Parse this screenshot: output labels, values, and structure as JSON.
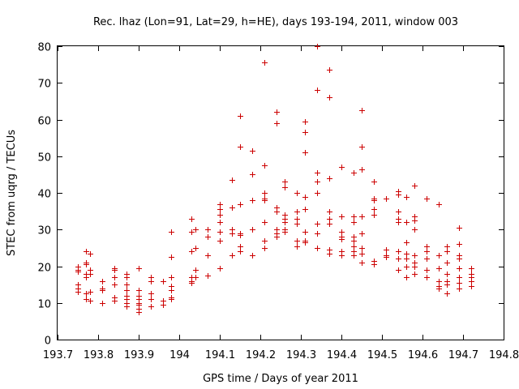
{
  "chart_data": {
    "type": "scatter",
    "title": "Rec. lhaz (Lon=91, Lat=29, h=HE), days 193-194, 2011, window 003",
    "xlabel": "GPS time / Days of year 2011",
    "ylabel": "STEC from uqrg / TECUs",
    "xlim": [
      193.7,
      194.8
    ],
    "ylim": [
      0,
      80
    ],
    "xticks": [
      193.7,
      193.8,
      193.9,
      194.0,
      194.1,
      194.2,
      194.3,
      194.4,
      194.5,
      194.6,
      194.7,
      194.8
    ],
    "xtick_labels": [
      "193.7",
      "193.8",
      "193.9",
      "194",
      "194.1",
      "194.2",
      "194.3",
      "194.4",
      "194.5",
      "194.6",
      "194.7",
      "194.8"
    ],
    "yticks": [
      0,
      10,
      20,
      30,
      40,
      50,
      60,
      70,
      80
    ],
    "ytick_labels": [
      "0",
      "10",
      "20",
      "30",
      "40",
      "50",
      "60",
      "70",
      "80"
    ],
    "grid": false,
    "legend": "none",
    "marker": "plus",
    "color": "#cc0000",
    "points": [
      [
        193.75,
        20
      ],
      [
        193.75,
        19
      ],
      [
        193.75,
        18.5
      ],
      [
        193.75,
        15
      ],
      [
        193.75,
        14
      ],
      [
        193.75,
        13
      ],
      [
        193.77,
        24
      ],
      [
        193.77,
        21
      ],
      [
        193.77,
        20.5
      ],
      [
        193.77,
        18
      ],
      [
        193.77,
        17
      ],
      [
        193.77,
        12.5
      ],
      [
        193.77,
        11
      ],
      [
        193.78,
        23.5
      ],
      [
        193.78,
        19
      ],
      [
        193.78,
        18
      ],
      [
        193.78,
        13
      ],
      [
        193.78,
        10.5
      ],
      [
        193.81,
        16
      ],
      [
        193.81,
        14
      ],
      [
        193.81,
        13.5
      ],
      [
        193.81,
        10
      ],
      [
        193.84,
        19.5
      ],
      [
        193.84,
        19
      ],
      [
        193.84,
        17
      ],
      [
        193.84,
        15
      ],
      [
        193.84,
        11.5
      ],
      [
        193.84,
        10.5
      ],
      [
        193.87,
        18
      ],
      [
        193.87,
        17
      ],
      [
        193.87,
        15
      ],
      [
        193.87,
        13.5
      ],
      [
        193.87,
        12
      ],
      [
        193.87,
        11
      ],
      [
        193.87,
        10
      ],
      [
        193.87,
        9
      ],
      [
        193.9,
        19.5
      ],
      [
        193.9,
        13.5
      ],
      [
        193.9,
        12
      ],
      [
        193.9,
        11
      ],
      [
        193.9,
        10
      ],
      [
        193.9,
        9.5
      ],
      [
        193.9,
        8.5
      ],
      [
        193.9,
        7.5
      ],
      [
        193.93,
        17
      ],
      [
        193.93,
        16
      ],
      [
        193.93,
        12.5
      ],
      [
        193.93,
        11
      ],
      [
        193.93,
        9
      ],
      [
        193.96,
        16
      ],
      [
        193.96,
        10.5
      ],
      [
        193.96,
        9.5
      ],
      [
        193.98,
        29.5
      ],
      [
        193.98,
        22.5
      ],
      [
        193.98,
        17
      ],
      [
        193.98,
        14.5
      ],
      [
        193.98,
        13.5
      ],
      [
        193.98,
        11.5
      ],
      [
        193.98,
        11
      ],
      [
        194.03,
        33
      ],
      [
        194.03,
        29.5
      ],
      [
        194.03,
        24
      ],
      [
        194.03,
        17
      ],
      [
        194.03,
        16
      ],
      [
        194.03,
        15.5
      ],
      [
        194.04,
        30
      ],
      [
        194.04,
        25
      ],
      [
        194.04,
        19
      ],
      [
        194.04,
        17
      ],
      [
        194.07,
        30
      ],
      [
        194.07,
        28
      ],
      [
        194.07,
        23
      ],
      [
        194.07,
        17.5
      ],
      [
        194.1,
        37
      ],
      [
        194.1,
        35.5
      ],
      [
        194.1,
        34
      ],
      [
        194.1,
        32
      ],
      [
        194.1,
        29.5
      ],
      [
        194.1,
        27
      ],
      [
        194.1,
        19.5
      ],
      [
        194.13,
        43.5
      ],
      [
        194.13,
        36
      ],
      [
        194.13,
        30
      ],
      [
        194.13,
        29
      ],
      [
        194.13,
        23
      ],
      [
        194.15,
        61
      ],
      [
        194.15,
        52.5
      ],
      [
        194.15,
        37
      ],
      [
        194.15,
        29
      ],
      [
        194.15,
        28.5
      ],
      [
        194.15,
        25.5
      ],
      [
        194.15,
        24
      ],
      [
        194.18,
        51.5
      ],
      [
        194.18,
        45
      ],
      [
        194.18,
        38
      ],
      [
        194.18,
        30
      ],
      [
        194.18,
        23
      ],
      [
        194.21,
        75.5
      ],
      [
        194.21,
        47.5
      ],
      [
        194.21,
        40
      ],
      [
        194.21,
        38.5
      ],
      [
        194.21,
        38
      ],
      [
        194.21,
        32
      ],
      [
        194.21,
        27
      ],
      [
        194.21,
        25
      ],
      [
        194.24,
        62
      ],
      [
        194.24,
        59
      ],
      [
        194.24,
        36
      ],
      [
        194.24,
        35
      ],
      [
        194.24,
        30
      ],
      [
        194.24,
        29
      ],
      [
        194.24,
        28
      ],
      [
        194.26,
        43
      ],
      [
        194.26,
        41.5
      ],
      [
        194.26,
        34
      ],
      [
        194.26,
        33
      ],
      [
        194.26,
        32
      ],
      [
        194.26,
        30
      ],
      [
        194.26,
        29.5
      ],
      [
        194.29,
        40
      ],
      [
        194.29,
        35
      ],
      [
        194.29,
        33
      ],
      [
        194.29,
        31.5
      ],
      [
        194.29,
        27
      ],
      [
        194.29,
        25.5
      ],
      [
        194.31,
        59.5
      ],
      [
        194.31,
        56.5
      ],
      [
        194.31,
        51
      ],
      [
        194.31,
        39
      ],
      [
        194.31,
        35.5
      ],
      [
        194.31,
        29.5
      ],
      [
        194.31,
        27
      ],
      [
        194.31,
        26.5
      ],
      [
        194.34,
        80
      ],
      [
        194.34,
        68
      ],
      [
        194.34,
        45.5
      ],
      [
        194.34,
        43
      ],
      [
        194.34,
        40
      ],
      [
        194.34,
        31.5
      ],
      [
        194.34,
        29
      ],
      [
        194.34,
        25
      ],
      [
        194.37,
        73.5
      ],
      [
        194.37,
        66
      ],
      [
        194.37,
        44
      ],
      [
        194.37,
        35
      ],
      [
        194.37,
        33
      ],
      [
        194.37,
        31.5
      ],
      [
        194.37,
        24.5
      ],
      [
        194.37,
        23.5
      ],
      [
        194.4,
        47
      ],
      [
        194.4,
        33.5
      ],
      [
        194.4,
        29.5
      ],
      [
        194.4,
        28
      ],
      [
        194.4,
        27.5
      ],
      [
        194.4,
        24
      ],
      [
        194.4,
        23
      ],
      [
        194.43,
        45.5
      ],
      [
        194.43,
        33.5
      ],
      [
        194.43,
        32
      ],
      [
        194.43,
        28
      ],
      [
        194.43,
        27
      ],
      [
        194.43,
        25.5
      ],
      [
        194.43,
        24
      ],
      [
        194.43,
        23
      ],
      [
        194.45,
        62.5
      ],
      [
        194.45,
        52.5
      ],
      [
        194.45,
        46.5
      ],
      [
        194.45,
        33.5
      ],
      [
        194.45,
        29
      ],
      [
        194.45,
        25
      ],
      [
        194.45,
        23.5
      ],
      [
        194.45,
        21
      ],
      [
        194.48,
        43
      ],
      [
        194.48,
        38.5
      ],
      [
        194.48,
        38
      ],
      [
        194.48,
        35.5
      ],
      [
        194.48,
        34
      ],
      [
        194.48,
        21.5
      ],
      [
        194.48,
        20.5
      ],
      [
        194.51,
        38.5
      ],
      [
        194.51,
        24.5
      ],
      [
        194.51,
        23
      ],
      [
        194.51,
        22.5
      ],
      [
        194.54,
        40.5
      ],
      [
        194.54,
        39.5
      ],
      [
        194.54,
        35
      ],
      [
        194.54,
        33
      ],
      [
        194.54,
        32
      ],
      [
        194.54,
        24
      ],
      [
        194.54,
        22
      ],
      [
        194.54,
        19
      ],
      [
        194.56,
        39
      ],
      [
        194.56,
        32
      ],
      [
        194.56,
        26.5
      ],
      [
        194.56,
        23.5
      ],
      [
        194.56,
        22
      ],
      [
        194.56,
        20
      ],
      [
        194.56,
        17
      ],
      [
        194.58,
        42
      ],
      [
        194.58,
        33.5
      ],
      [
        194.58,
        32.5
      ],
      [
        194.58,
        30
      ],
      [
        194.58,
        23
      ],
      [
        194.58,
        21
      ],
      [
        194.58,
        20
      ],
      [
        194.58,
        18
      ],
      [
        194.61,
        38.5
      ],
      [
        194.61,
        25.5
      ],
      [
        194.61,
        24
      ],
      [
        194.61,
        22
      ],
      [
        194.61,
        19
      ],
      [
        194.61,
        17
      ],
      [
        194.64,
        37
      ],
      [
        194.64,
        23
      ],
      [
        194.64,
        19.5
      ],
      [
        194.64,
        16
      ],
      [
        194.64,
        14.5
      ],
      [
        194.64,
        14
      ],
      [
        194.66,
        25.5
      ],
      [
        194.66,
        24
      ],
      [
        194.66,
        21
      ],
      [
        194.66,
        18
      ],
      [
        194.66,
        16
      ],
      [
        194.66,
        15
      ],
      [
        194.66,
        12.5
      ],
      [
        194.69,
        30.5
      ],
      [
        194.69,
        26
      ],
      [
        194.69,
        23
      ],
      [
        194.69,
        22
      ],
      [
        194.69,
        19.5
      ],
      [
        194.69,
        17
      ],
      [
        194.69,
        15.5
      ],
      [
        194.69,
        14
      ],
      [
        194.72,
        19.5
      ],
      [
        194.72,
        18
      ],
      [
        194.72,
        17
      ],
      [
        194.72,
        16
      ],
      [
        194.72,
        14.5
      ]
    ]
  }
}
